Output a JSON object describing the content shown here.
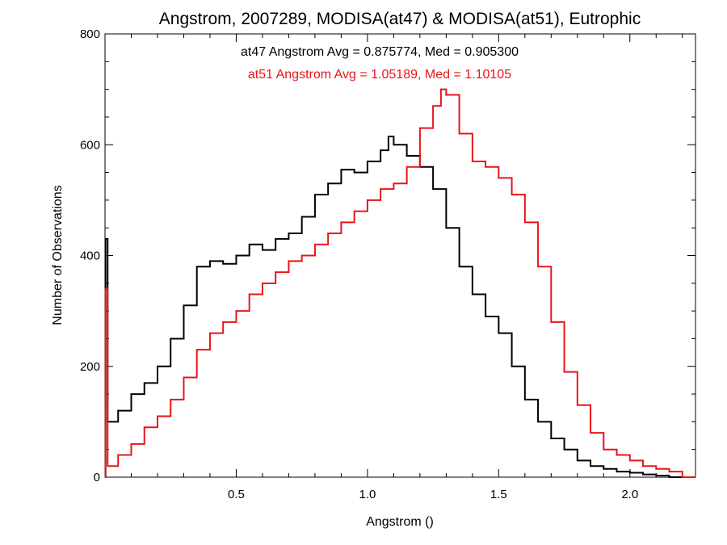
{
  "chart_data": {
    "type": "line",
    "step": true,
    "title": "Angstrom, 2007289, MODISA(at47) & MODISA(at51), Eutrophic",
    "xlabel": "Angstrom ()",
    "ylabel": "Number of Observations",
    "xlim": [
      0.0,
      2.25
    ],
    "ylim": [
      0,
      800
    ],
    "xticks": [
      0.5,
      1.0,
      1.5,
      2.0
    ],
    "xtick_labels": [
      "0.5",
      "1.0",
      "1.5",
      "2.0"
    ],
    "yticks": [
      0,
      200,
      400,
      600,
      800
    ],
    "ytick_labels": [
      "0",
      "200",
      "400",
      "600",
      "800"
    ],
    "grid": false,
    "annotations": [
      {
        "text": "at47 Angstrom Avg = 0.875774, Med = 0.905300",
        "color": "#000000"
      },
      {
        "text": "at51 Angstrom Avg = 1.05189, Med = 1.10105",
        "color": "#e8141a"
      }
    ],
    "series": [
      {
        "color": "#000000",
        "x": [
          0.0,
          0.002,
          0.01,
          0.05,
          0.1,
          0.15,
          0.2,
          0.25,
          0.3,
          0.35,
          0.4,
          0.45,
          0.5,
          0.55,
          0.6,
          0.65,
          0.7,
          0.75,
          0.8,
          0.85,
          0.9,
          0.95,
          1.0,
          1.05,
          1.08,
          1.1,
          1.15,
          1.2,
          1.25,
          1.3,
          1.35,
          1.4,
          1.45,
          1.5,
          1.55,
          1.6,
          1.65,
          1.7,
          1.75,
          1.8,
          1.85,
          1.9,
          1.95,
          2.0,
          2.05,
          2.1,
          2.15,
          2.2
        ],
        "y": [
          0,
          430,
          100,
          120,
          150,
          170,
          200,
          250,
          310,
          380,
          390,
          385,
          400,
          420,
          410,
          430,
          440,
          470,
          510,
          530,
          555,
          550,
          570,
          590,
          615,
          600,
          580,
          560,
          520,
          450,
          380,
          330,
          290,
          260,
          200,
          140,
          100,
          70,
          50,
          30,
          20,
          15,
          10,
          8,
          5,
          3,
          0,
          0
        ]
      },
      {
        "color": "#e8141a",
        "x": [
          0.0,
          0.002,
          0.01,
          0.05,
          0.1,
          0.15,
          0.2,
          0.25,
          0.3,
          0.35,
          0.4,
          0.45,
          0.5,
          0.55,
          0.6,
          0.65,
          0.7,
          0.75,
          0.8,
          0.85,
          0.9,
          0.95,
          1.0,
          1.05,
          1.1,
          1.15,
          1.2,
          1.25,
          1.28,
          1.3,
          1.35,
          1.4,
          1.45,
          1.5,
          1.55,
          1.6,
          1.65,
          1.7,
          1.75,
          1.8,
          1.85,
          1.9,
          1.95,
          2.0,
          2.05,
          2.1,
          2.15,
          2.2
        ],
        "y": [
          0,
          340,
          20,
          40,
          60,
          90,
          110,
          140,
          180,
          230,
          260,
          280,
          300,
          330,
          350,
          370,
          390,
          400,
          420,
          440,
          460,
          480,
          500,
          520,
          530,
          560,
          630,
          670,
          700,
          690,
          620,
          570,
          560,
          540,
          510,
          460,
          380,
          280,
          190,
          130,
          80,
          50,
          40,
          30,
          20,
          15,
          10,
          0
        ]
      }
    ]
  }
}
